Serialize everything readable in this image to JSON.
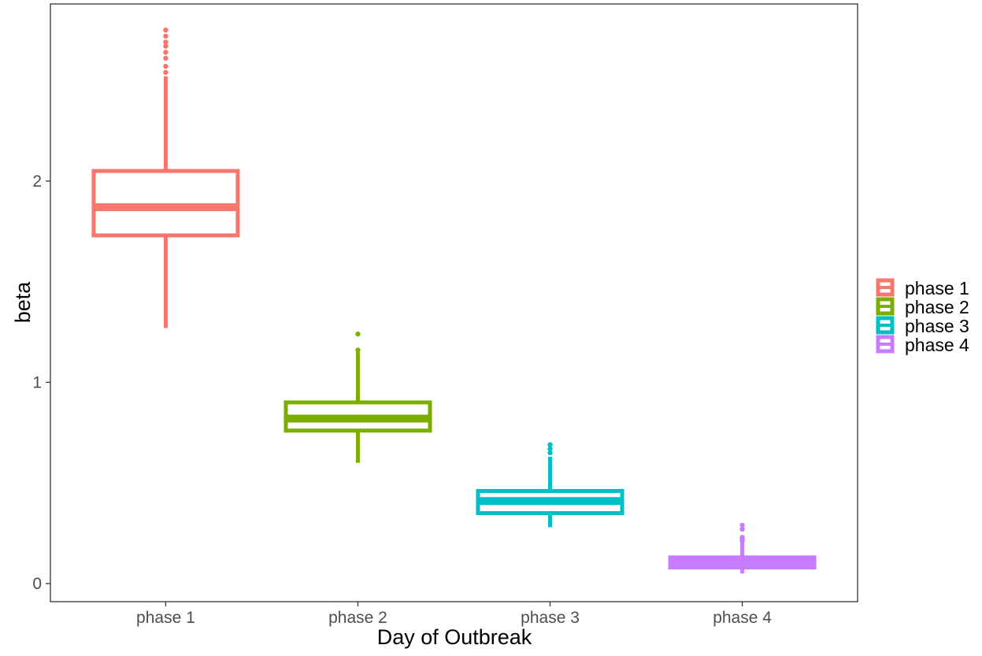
{
  "chart_data": {
    "type": "boxplot",
    "xlabel": "Day of Outbreak",
    "ylabel": "beta",
    "categories": [
      "phase 1",
      "phase 2",
      "phase 3",
      "phase 4"
    ],
    "yticks": [
      0,
      1,
      2
    ],
    "ylim": [
      -0.09,
      2.88
    ],
    "grid": false,
    "legend_position": "right",
    "boxes": [
      {
        "category": "phase 1",
        "color": "#F8766D",
        "q1": 1.73,
        "median": 1.87,
        "q3": 2.05,
        "whisker_low": 1.27,
        "whisker_high": 2.52,
        "outliers": [
          2.54,
          2.57,
          2.61,
          2.64,
          2.67,
          2.69,
          2.72,
          2.75
        ]
      },
      {
        "category": "phase 2",
        "color": "#7CAE00",
        "q1": 0.76,
        "median": 0.82,
        "q3": 0.9,
        "whisker_low": 0.6,
        "whisker_high": 1.15,
        "outliers": [
          1.16,
          1.24
        ]
      },
      {
        "category": "phase 3",
        "color": "#00BFC4",
        "q1": 0.35,
        "median": 0.41,
        "q3": 0.46,
        "whisker_low": 0.28,
        "whisker_high": 0.63,
        "outliers": [
          0.65,
          0.67,
          0.69
        ]
      },
      {
        "category": "phase 4",
        "color": "#C77CFF",
        "q1": 0.08,
        "median": 0.105,
        "q3": 0.13,
        "whisker_low": 0.05,
        "whisker_high": 0.2,
        "outliers": [
          0.21,
          0.22,
          0.23,
          0.27,
          0.29
        ]
      }
    ]
  },
  "legend": {
    "items": [
      {
        "label": "phase 1",
        "color": "#F8766D"
      },
      {
        "label": "phase 2",
        "color": "#7CAE00"
      },
      {
        "label": "phase 3",
        "color": "#00BFC4"
      },
      {
        "label": "phase 4",
        "color": "#C77CFF"
      }
    ]
  }
}
